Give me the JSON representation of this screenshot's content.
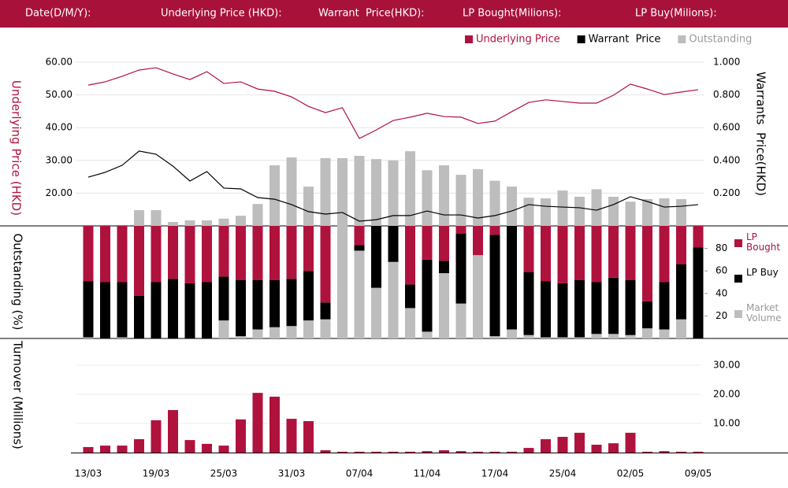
{
  "header": {
    "labels": [
      "Date(D/M/Y):",
      "Underlying Price (HKD):",
      "Warrant  Price(HKD):",
      "LP Bought(Milions):",
      "LP Buy(Milions):"
    ]
  },
  "chart_data": [
    {
      "type": "line",
      "y_label": "Underlying Price (HKD)",
      "y2_label": "Warrants  Price(HKD)",
      "ylim": [
        10,
        60
      ],
      "yticks": [
        {
          "value": 60,
          "label": "60.00"
        },
        {
          "value": 50,
          "label": "50.00"
        },
        {
          "value": 40,
          "label": "40.00"
        },
        {
          "value": 30,
          "label": "30.00"
        },
        {
          "value": 20,
          "label": "20.00"
        }
      ],
      "y2lim": [
        0,
        1
      ],
      "y2ticks": [
        {
          "value": 1,
          "label": "1.000"
        },
        {
          "value": 0.8,
          "label": "0.800"
        },
        {
          "value": 0.6,
          "label": "0.600"
        },
        {
          "value": 0.4,
          "label": "0.400"
        },
        {
          "value": 0.2,
          "label": "0.200"
        }
      ],
      "grid": true,
      "legend": "top-right",
      "series": [
        {
          "name": "Underlying Price",
          "color": "#b0123e",
          "values": [
            53.0,
            54.0,
            55.7,
            57.6,
            58.3,
            56.4,
            54.7,
            57.1,
            53.5,
            54.0,
            51.8,
            51.1,
            49.4,
            46.5,
            44.6,
            46.1,
            36.7,
            39.3,
            42.2,
            43.2,
            44.4,
            43.4,
            43.2,
            41.3,
            42.0,
            44.9,
            47.7,
            48.5,
            48.0,
            47.5,
            47.5,
            49.9,
            53.3,
            51.8,
            50.1,
            50.9,
            51.6
          ]
        },
        {
          "name": "Warrant  Price",
          "color": "#000000",
          "axis": "y2",
          "values": [
            0.298,
            0.327,
            0.37,
            0.457,
            0.438,
            0.365,
            0.274,
            0.332,
            0.231,
            0.226,
            0.173,
            0.163,
            0.13,
            0.087,
            0.072,
            0.082,
            0.029,
            0.038,
            0.063,
            0.063,
            0.091,
            0.067,
            0.067,
            0.048,
            0.063,
            0.091,
            0.13,
            0.12,
            0.115,
            0.111,
            0.096,
            0.13,
            0.178,
            0.149,
            0.115,
            0.12,
            0.13
          ]
        },
        {
          "name": "Outstanding",
          "color": "#bdbdbd",
          "type": "bar",
          "values": [
            null,
            null,
            null,
            14.8,
            14.8,
            11.2,
            11.7,
            11.7,
            12.2,
            13.1,
            16.7,
            28.5,
            30.9,
            22.0,
            30.7,
            30.7,
            31.4,
            30.4,
            30.0,
            32.8,
            27.0,
            28.5,
            25.6,
            27.3,
            23.8,
            22.0,
            18.6,
            18.4,
            20.8,
            18.9,
            21.2,
            18.9,
            17.4,
            18.2,
            18.4,
            18.2,
            null
          ]
        }
      ]
    },
    {
      "type": "bar",
      "stacked": true,
      "y_label": "Outstanding (%)",
      "ylim": [
        0,
        100
      ],
      "yticks": [
        20,
        40,
        60,
        80
      ],
      "legend": "right",
      "series": [
        {
          "name": "LP Bought",
          "color": "#b0123e",
          "values": [
            49,
            50,
            50,
            62,
            50,
            47,
            51,
            50,
            45,
            48,
            48,
            48,
            47,
            40,
            68,
            0,
            17,
            0,
            0,
            52,
            30,
            31,
            7,
            26,
            8,
            0,
            41,
            49,
            51,
            48,
            50,
            46,
            48,
            67,
            50,
            34,
            19
          ]
        },
        {
          "name": "LP Buy",
          "color": "#000000",
          "values": [
            50,
            50,
            49,
            38,
            50,
            53,
            49,
            50,
            39,
            50,
            44,
            42,
            42,
            44,
            15,
            0,
            5,
            55,
            32,
            21,
            64,
            11,
            62,
            0,
            90,
            92,
            56,
            50,
            48,
            51,
            46,
            50,
            49,
            24,
            42,
            49,
            81
          ]
        },
        {
          "name": "Market Volume",
          "color": "#bdbdbd",
          "values": [
            1,
            0,
            1,
            0,
            0,
            0,
            0,
            0,
            16,
            2,
            8,
            10,
            11,
            16,
            17,
            100,
            78,
            45,
            68,
            27,
            6,
            58,
            31,
            74,
            2,
            8,
            3,
            1,
            1,
            1,
            4,
            4,
            3,
            9,
            8,
            17,
            0
          ]
        }
      ]
    },
    {
      "type": "bar",
      "y_label": "Turnover (Millions)",
      "ylim": [
        0,
        30
      ],
      "yticks": [
        {
          "value": 30,
          "label": "30.00"
        },
        {
          "value": 20,
          "label": "20.00"
        },
        {
          "value": 10,
          "label": "10.00"
        }
      ],
      "grid": true,
      "color": "#b0123e",
      "categories": [
        "13/03",
        null,
        null,
        null,
        "19/03",
        null,
        null,
        null,
        "25/03",
        null,
        null,
        null,
        "31/03",
        null,
        null,
        null,
        "07/04",
        null,
        null,
        null,
        "11/04",
        null,
        null,
        null,
        "17/04",
        null,
        null,
        null,
        "25/04",
        null,
        null,
        null,
        "02/05",
        null,
        null,
        null,
        "09/05"
      ],
      "values": [
        1.9,
        2.4,
        2.4,
        4.6,
        11.1,
        14.6,
        4.3,
        3.0,
        2.4,
        11.4,
        20.5,
        19.2,
        11.6,
        10.8,
        0.8,
        0.3,
        0.3,
        0.3,
        0.3,
        0.3,
        0.5,
        0.8,
        0.5,
        0.3,
        0.3,
        0.3,
        1.6,
        4.6,
        5.4,
        6.8,
        2.7,
        3.2,
        6.8,
        0.3,
        0.5,
        0.3,
        0.3
      ]
    }
  ]
}
